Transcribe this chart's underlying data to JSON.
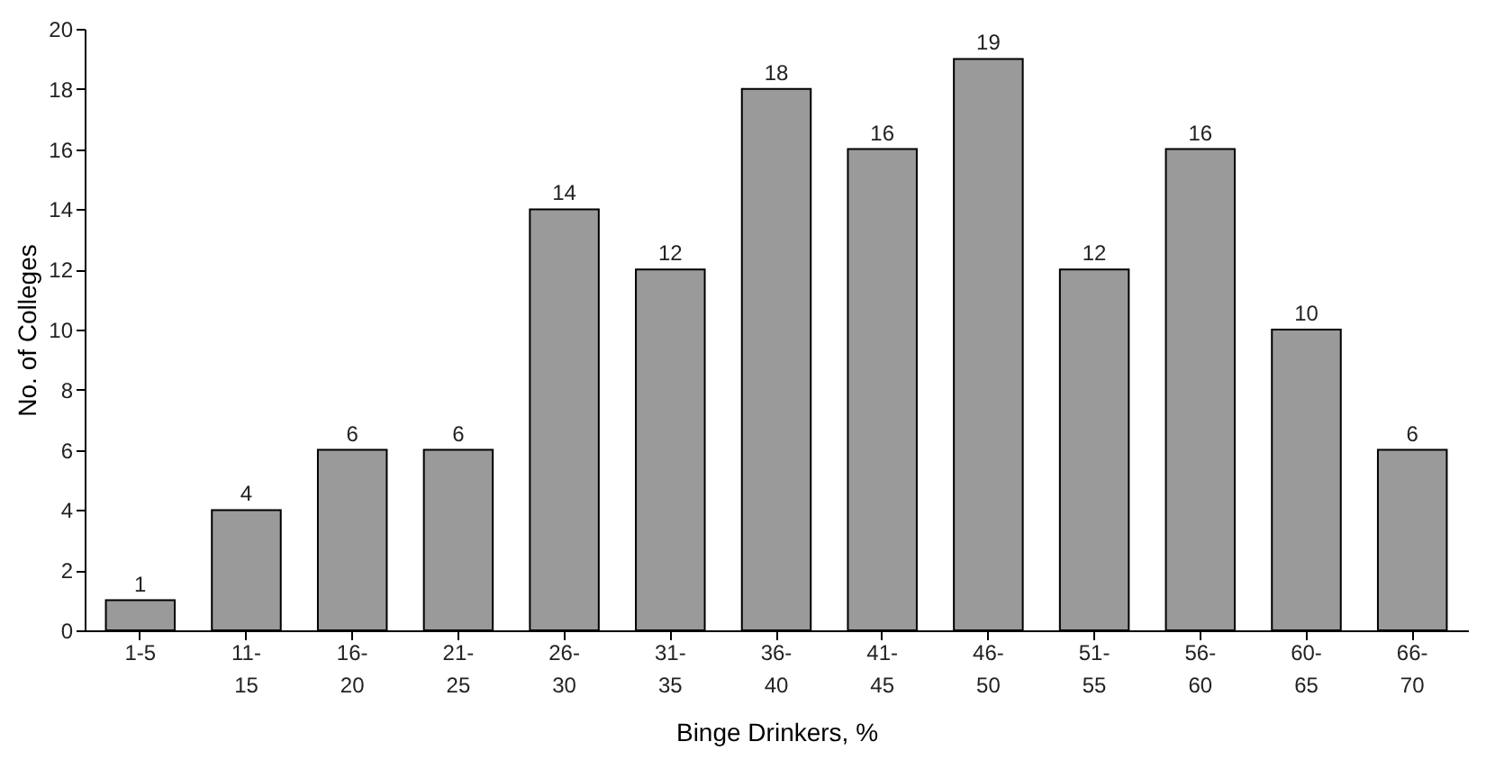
{
  "chart_data": {
    "type": "bar",
    "xlabel": "Binge Drinkers, %",
    "ylabel": "No. of Colleges",
    "categories": [
      "1-5",
      "11-\n15",
      "16-\n20",
      "21-\n25",
      "26-\n30",
      "31-\n35",
      "36-\n40",
      "41-\n45",
      "46-\n50",
      "51-\n55",
      "56-\n60",
      "60-\n65",
      "66-\n70"
    ],
    "values": [
      1,
      4,
      6,
      6,
      14,
      12,
      18,
      16,
      19,
      12,
      16,
      10,
      6
    ],
    "color": "#9a9a9a",
    "ylim": [
      0,
      20
    ],
    "yticks": [
      0,
      2,
      4,
      6,
      8,
      10,
      12,
      14,
      16,
      18,
      20
    ],
    "data_labels": true,
    "grid": false
  }
}
